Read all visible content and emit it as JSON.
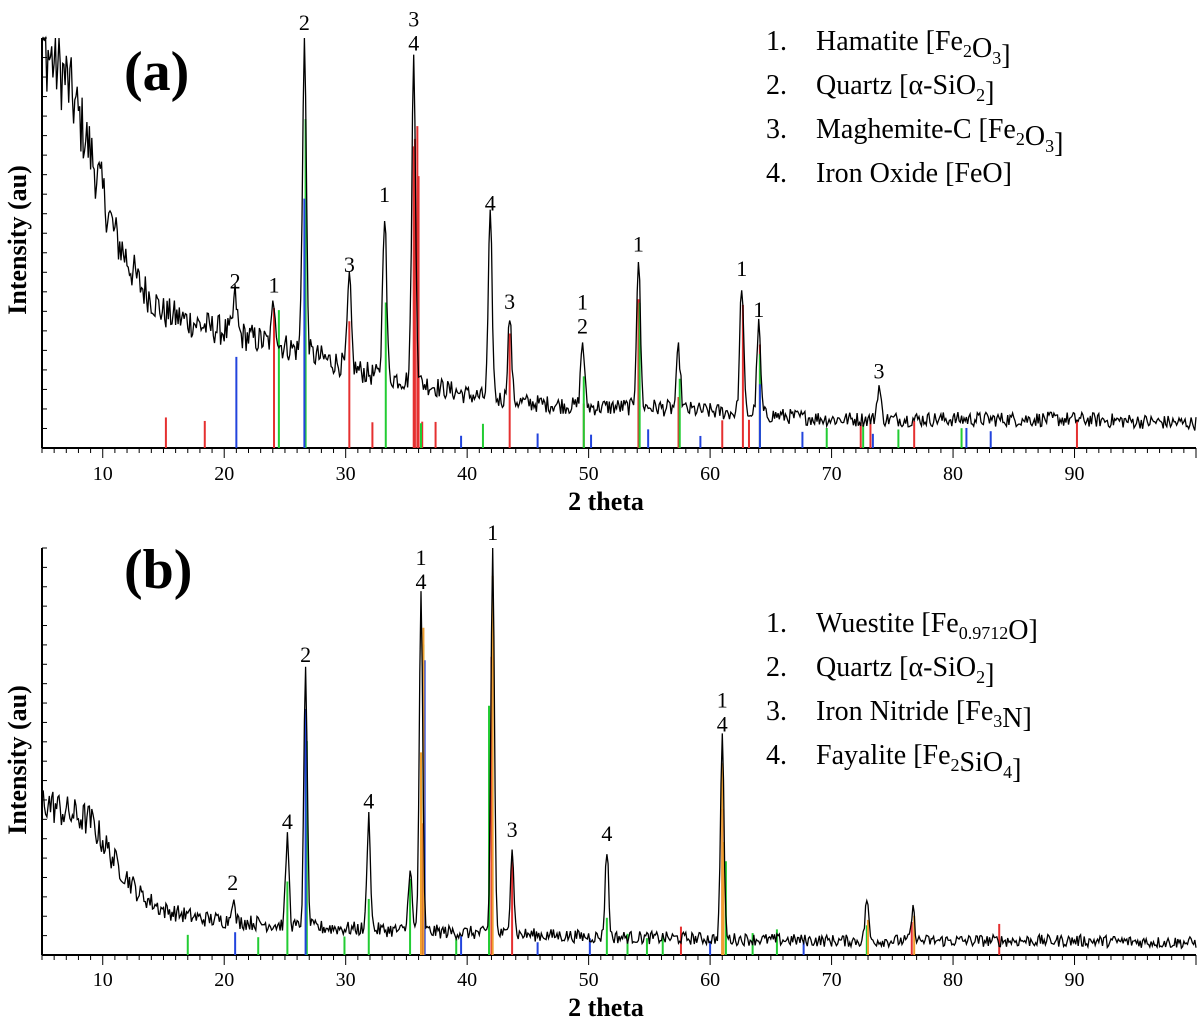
{
  "chart_data": [
    {
      "type": "line",
      "panel_label": "(a)",
      "xlabel": "2 theta",
      "ylabel": "Intensity (au)",
      "xlim": [
        5,
        100
      ],
      "x_ticks": [
        "10",
        "20",
        "30",
        "40",
        "50",
        "60",
        "70",
        "80",
        "90"
      ],
      "legend": [
        {
          "num": "1.",
          "name": "Hamatite [Fe",
          "sub1": "2",
          "mid": "O",
          "sub2": "3",
          "end": "]"
        },
        {
          "num": "2.",
          "name": "Quartz [α-SiO",
          "sub1": "2",
          "mid": "",
          "sub2": "",
          "end": "]"
        },
        {
          "num": "3.",
          "name": "Maghemite-C [Fe",
          "sub1": "2",
          "mid": "O",
          "sub2": "3",
          "end": "]"
        },
        {
          "num": "4.",
          "name": "Iron Oxide [FeO]",
          "sub1": "",
          "mid": "",
          "sub2": "",
          "end": ""
        }
      ],
      "trace_keypoints": [
        [
          5,
          0.98
        ],
        [
          7,
          0.9
        ],
        [
          9,
          0.72
        ],
        [
          11,
          0.52
        ],
        [
          13,
          0.4
        ],
        [
          15,
          0.33
        ],
        [
          18,
          0.3
        ],
        [
          22,
          0.27
        ],
        [
          26,
          0.24
        ],
        [
          28,
          0.22
        ],
        [
          32,
          0.18
        ],
        [
          36,
          0.16
        ],
        [
          40,
          0.13
        ],
        [
          45,
          0.11
        ],
        [
          50,
          0.1
        ],
        [
          55,
          0.1
        ],
        [
          60,
          0.09
        ],
        [
          65,
          0.08
        ],
        [
          70,
          0.07
        ],
        [
          80,
          0.07
        ],
        [
          90,
          0.07
        ],
        [
          100,
          0.06
        ]
      ],
      "peaks": [
        {
          "x": 20.9,
          "y": 0.37,
          "label": [
            "2"
          ]
        },
        {
          "x": 24.1,
          "y": 0.36,
          "label": [
            "1"
          ]
        },
        {
          "x": 26.6,
          "y": 1.0,
          "label": [
            "2"
          ]
        },
        {
          "x": 30.3,
          "y": 0.41,
          "label": [
            "3"
          ]
        },
        {
          "x": 33.2,
          "y": 0.58,
          "label": [
            "1"
          ]
        },
        {
          "x": 35.6,
          "y": 0.95,
          "label": [
            "3",
            "4"
          ]
        },
        {
          "x": 41.9,
          "y": 0.56,
          "label": [
            "4"
          ]
        },
        {
          "x": 43.5,
          "y": 0.32,
          "label": [
            "3"
          ]
        },
        {
          "x": 49.5,
          "y": 0.26,
          "label": [
            "1",
            "2"
          ]
        },
        {
          "x": 54.1,
          "y": 0.46,
          "label": [
            "1"
          ]
        },
        {
          "x": 57.4,
          "y": 0.24,
          "label": [
            ""
          ]
        },
        {
          "x": 62.6,
          "y": 0.4,
          "label": [
            "1"
          ]
        },
        {
          "x": 64.0,
          "y": 0.3,
          "label": [
            "1"
          ]
        },
        {
          "x": 73.9,
          "y": 0.15,
          "label": [
            "3"
          ]
        }
      ],
      "reference_lines": {
        "red": [
          15.2,
          18.4,
          24.1,
          30.3,
          32.2,
          35.6,
          35.7,
          35.9,
          36.0,
          36.3,
          37.4,
          43.5,
          49.6,
          54.1,
          57.4,
          61.0,
          62.7,
          63.2,
          64.1,
          72.4,
          73.2,
          76.8,
          90.2
        ],
        "green": [
          24.5,
          26.7,
          33.3,
          36.2,
          41.3,
          49.6,
          54.2,
          57.5,
          64.1,
          69.6,
          72.6,
          75.5,
          80.7
        ],
        "blue": [
          21.0,
          26.6,
          39.5,
          45.8,
          50.2,
          54.9,
          59.2,
          64.1,
          67.6,
          73.4,
          81.1,
          83.1
        ]
      },
      "colors": {
        "trace": "#000000",
        "red": "#e53030",
        "green": "#22cc33",
        "blue": "#2244dd"
      }
    },
    {
      "type": "line",
      "panel_label": "(b)",
      "xlabel": "2 theta",
      "ylabel": "Intensity (au)",
      "xlim": [
        5,
        100
      ],
      "x_ticks": [
        "10",
        "20",
        "30",
        "40",
        "50",
        "60",
        "70",
        "80",
        "90"
      ],
      "legend": [
        {
          "num": "1.",
          "name": "Wuestite [Fe",
          "sub1": "0.9712",
          "mid": "O",
          "sub2": "",
          "end": "]"
        },
        {
          "num": "2.",
          "name": "Quartz [α-SiO",
          "sub1": "2",
          "mid": "",
          "sub2": "",
          "end": "]"
        },
        {
          "num": "3.",
          "name": "Iron Nitride [Fe",
          "sub1": "3",
          "mid": "N",
          "sub2": "",
          "end": "]"
        },
        {
          "num": "4.",
          "name": "Fayalite [Fe",
          "sub1": "2",
          "mid": "SiO",
          "sub2": "4",
          "end": "]"
        }
      ],
      "trace_keypoints": [
        [
          5,
          0.38
        ],
        [
          7,
          0.35
        ],
        [
          9,
          0.33
        ],
        [
          11,
          0.23
        ],
        [
          13,
          0.15
        ],
        [
          15,
          0.11
        ],
        [
          18,
          0.09
        ],
        [
          22,
          0.08
        ],
        [
          26,
          0.07
        ],
        [
          30,
          0.065
        ],
        [
          35,
          0.06
        ],
        [
          40,
          0.055
        ],
        [
          50,
          0.045
        ],
        [
          60,
          0.04
        ],
        [
          70,
          0.035
        ],
        [
          80,
          0.035
        ],
        [
          90,
          0.035
        ],
        [
          100,
          0.03
        ]
      ],
      "peaks": [
        {
          "x": 20.7,
          "y": 0.14,
          "label": [
            "2"
          ]
        },
        {
          "x": 25.2,
          "y": 0.29,
          "label": [
            "4"
          ]
        },
        {
          "x": 26.7,
          "y": 0.7,
          "label": [
            "2"
          ]
        },
        {
          "x": 31.9,
          "y": 0.34,
          "label": [
            "4"
          ]
        },
        {
          "x": 35.3,
          "y": 0.22,
          "label": [
            ""
          ]
        },
        {
          "x": 36.2,
          "y": 0.88,
          "label": [
            "1",
            "4"
          ]
        },
        {
          "x": 42.1,
          "y": 1.0,
          "label": [
            "1"
          ]
        },
        {
          "x": 43.7,
          "y": 0.27,
          "label": [
            "3"
          ]
        },
        {
          "x": 51.5,
          "y": 0.26,
          "label": [
            "4"
          ]
        },
        {
          "x": 61.0,
          "y": 0.53,
          "label": [
            "1",
            "4"
          ]
        },
        {
          "x": 72.9,
          "y": 0.14,
          "label": [
            ""
          ]
        },
        {
          "x": 76.7,
          "y": 0.11,
          "label": [
            ""
          ]
        }
      ],
      "reference_lines": {
        "red": [
          36.3,
          42.0,
          43.7,
          57.6,
          61.0,
          76.6,
          83.8
        ],
        "green": [
          17.0,
          22.8,
          25.2,
          26.8,
          29.9,
          31.9,
          35.3,
          36.4,
          39.1,
          41.8,
          51.5,
          53.2,
          54.8,
          56.1,
          61.3,
          63.5,
          65.5,
          72.9
        ],
        "blue": [
          20.9,
          26.7,
          36.5,
          39.5,
          45.8,
          50.1,
          60.0,
          67.7
        ],
        "orange": [
          36.2,
          36.4,
          42.1,
          61.0,
          61.1,
          73.0,
          76.8
        ]
      },
      "colors": {
        "trace": "#000000",
        "red": "#e53030",
        "green": "#22cc33",
        "blue": "#2244dd",
        "orange": "#f0a030"
      }
    }
  ]
}
